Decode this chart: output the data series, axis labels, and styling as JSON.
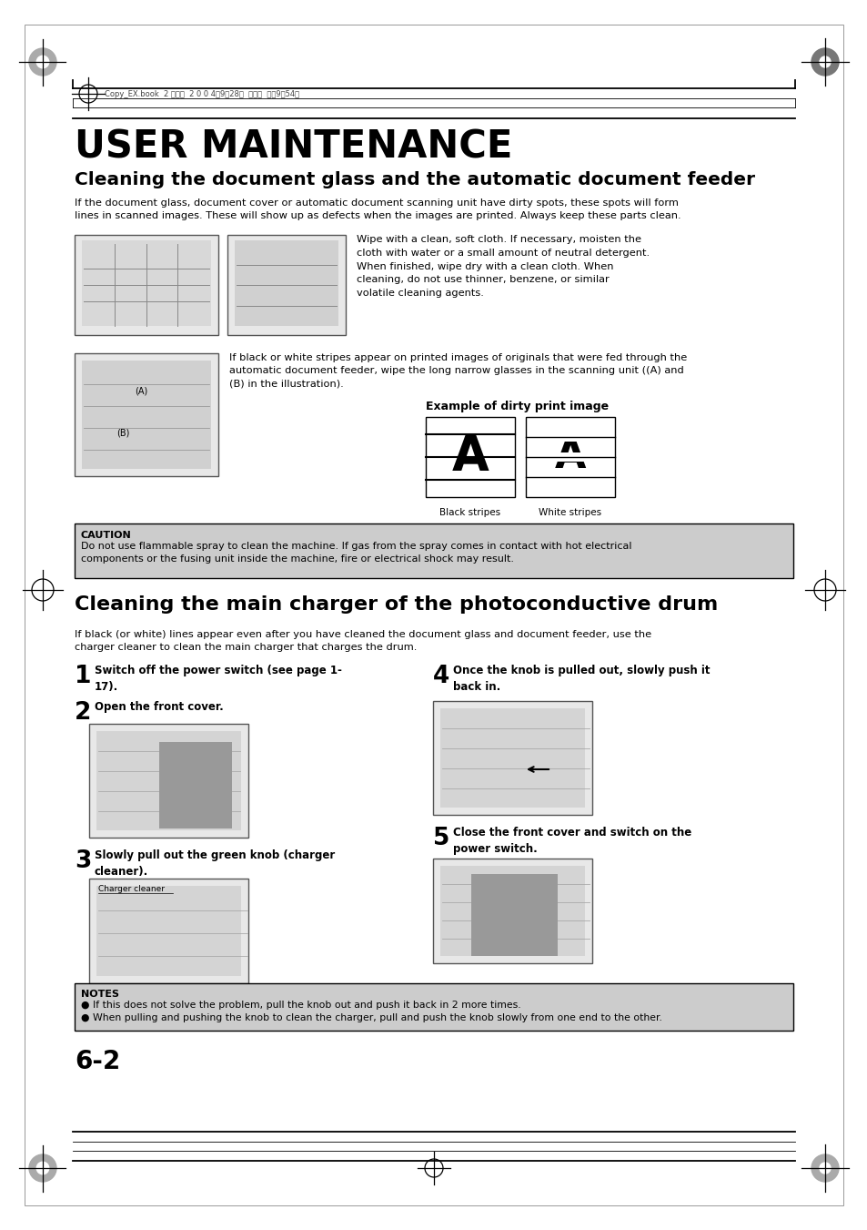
{
  "bg_color": "#ffffff",
  "caution_bg": "#cccccc",
  "notes_bg": "#cccccc",
  "title_main": "USER MAINTENANCE",
  "title_section1": "Cleaning the document glass and the automatic document feeder",
  "title_section2": "Cleaning the main charger of the photoconductive drum",
  "section1_intro": "If the document glass, document cover or automatic document scanning unit have dirty spots, these spots will form\nlines in scanned images. These will show up as defects when the images are printed. Always keep these parts clean.",
  "section1_text1": "Wipe with a clean, soft cloth. If necessary, moisten the\ncloth with water or a small amount of neutral detergent.\nWhen finished, wipe dry with a clean cloth. When\ncleaning, do not use thinner, benzene, or similar\nvolatile cleaning agents.",
  "section1_text2": "If black or white stripes appear on printed images of originals that were fed through the\nautomatic document feeder, wipe the long narrow glasses in the scanning unit ((A) and\n(B) in the illustration).",
  "example_label": "Example of dirty print image",
  "black_stripes": "Black stripes",
  "white_stripes": "White stripes",
  "caution_title": "CAUTION",
  "caution_text": "Do not use flammable spray to clean the machine. If gas from the spray comes in contact with hot electrical\ncomponents or the fusing unit inside the machine, fire or electrical shock may result.",
  "section2_intro": "If black (or white) lines appear even after you have cleaned the document glass and document feeder, use the\ncharger cleaner to clean the main charger that charges the drum.",
  "step1_num": "1",
  "step1_text": "Switch off the power switch (see page 1-\n17).",
  "step2_num": "2",
  "step2_text": "Open the front cover.",
  "step3_num": "3",
  "step3_text": "Slowly pull out the green knob (charger\ncleaner).",
  "charger_cleaner_label": "Charger cleaner",
  "step4_num": "4",
  "step4_text": "Once the knob is pulled out, slowly push it\nback in.",
  "step5_num": "5",
  "step5_text": "Close the front cover and switch on the\npower switch.",
  "notes_title": "NOTES",
  "notes_text1": "● If this does not solve the problem, pull the knob out and push it back in 2 more times.",
  "notes_text2": "● When pulling and pushing the knob to clean the charger, pull and push the knob slowly from one end to the other.",
  "page_num": "6-2",
  "header_text": "Copy_EX.book  2 ページ  2 0 0 4年9月28日  火曜日  午後9時54分"
}
